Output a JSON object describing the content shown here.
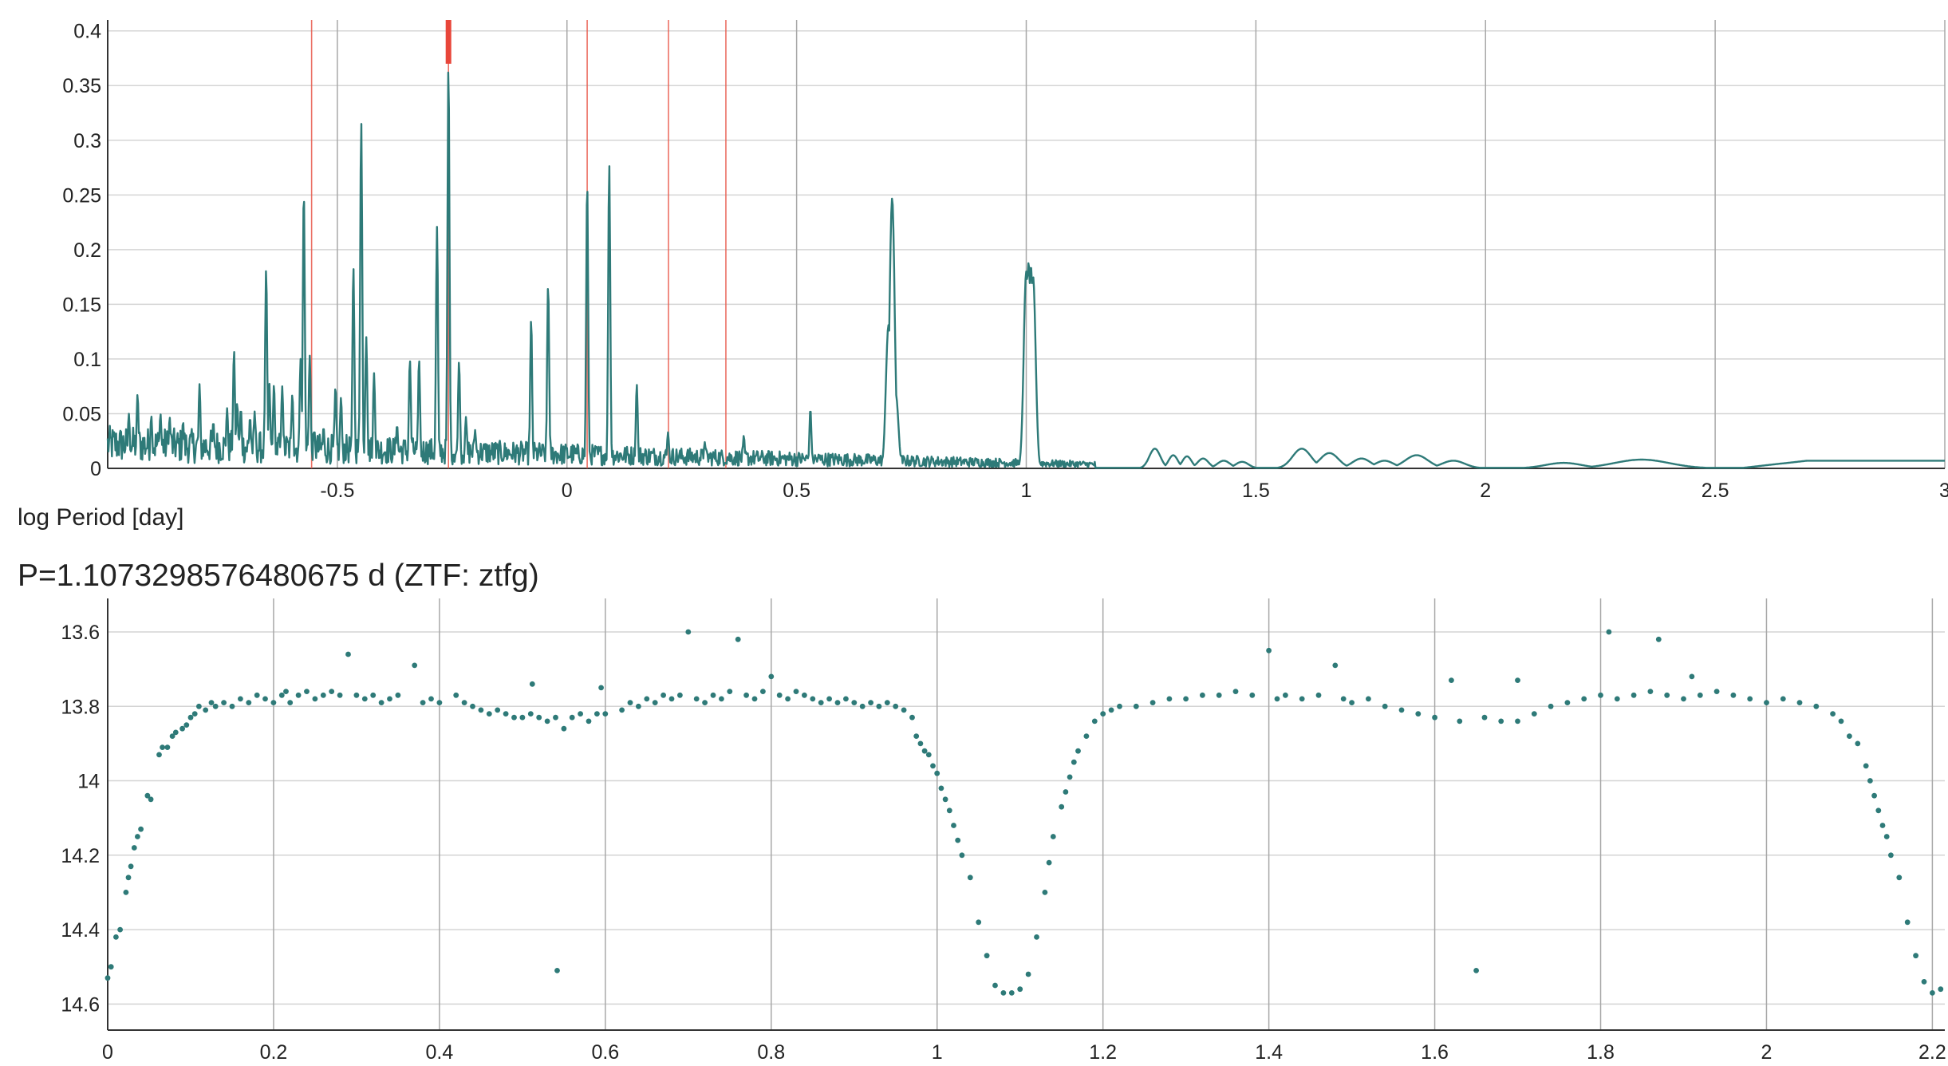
{
  "chart_data": [
    {
      "type": "line",
      "title": "",
      "xlabel": "log Period [day]",
      "ylabel": "",
      "xlim": [
        -1.0,
        3.0
      ],
      "ylim": [
        0,
        0.41
      ],
      "grid": true,
      "x_ticks": [
        {
          "v": -0.5,
          "label": "-0.5"
        },
        {
          "v": 0,
          "label": "0"
        },
        {
          "v": 0.5,
          "label": "0.5"
        },
        {
          "v": 1,
          "label": "1"
        },
        {
          "v": 1.5,
          "label": "1.5"
        },
        {
          "v": 2,
          "label": "2"
        },
        {
          "v": 2.5,
          "label": "2.5"
        },
        {
          "v": 3,
          "label": "3"
        }
      ],
      "y_ticks": [
        {
          "v": 0,
          "label": "0"
        },
        {
          "v": 0.05,
          "label": "0.05"
        },
        {
          "v": 0.1,
          "label": "0.1"
        },
        {
          "v": 0.15,
          "label": "0.15"
        },
        {
          "v": 0.2,
          "label": "0.2"
        },
        {
          "v": 0.25,
          "label": "0.25"
        },
        {
          "v": 0.3,
          "label": "0.3"
        },
        {
          "v": 0.35,
          "label": "0.35"
        },
        {
          "v": 0.4,
          "label": "0.4"
        }
      ],
      "series_color": "#2e7a78",
      "marker_color": "#e8584a",
      "selected_marker_color": "#e8463a",
      "marker_lines_x": [
        -0.556,
        -0.258,
        0.044,
        0.221,
        0.346
      ],
      "selected_period_x": -0.258,
      "peaks": [
        {
          "x": -0.954,
          "y": 0.05
        },
        {
          "x": -0.935,
          "y": 0.068
        },
        {
          "x": -0.905,
          "y": 0.048
        },
        {
          "x": -0.885,
          "y": 0.05
        },
        {
          "x": -0.865,
          "y": 0.047
        },
        {
          "x": -0.836,
          "y": 0.043
        },
        {
          "x": -0.8,
          "y": 0.077
        },
        {
          "x": -0.77,
          "y": 0.043
        },
        {
          "x": -0.74,
          "y": 0.055
        },
        {
          "x": -0.725,
          "y": 0.108
        },
        {
          "x": -0.718,
          "y": 0.06
        },
        {
          "x": -0.71,
          "y": 0.055
        },
        {
          "x": -0.69,
          "y": 0.047
        },
        {
          "x": -0.68,
          "y": 0.052
        },
        {
          "x": -0.655,
          "y": 0.183
        },
        {
          "x": -0.648,
          "y": 0.078
        },
        {
          "x": -0.638,
          "y": 0.077
        },
        {
          "x": -0.62,
          "y": 0.075
        },
        {
          "x": -0.598,
          "y": 0.068
        },
        {
          "x": -0.58,
          "y": 0.1
        },
        {
          "x": -0.573,
          "y": 0.256
        },
        {
          "x": -0.56,
          "y": 0.103
        },
        {
          "x": -0.55,
          "y": 0.035
        },
        {
          "x": -0.53,
          "y": 0.038
        },
        {
          "x": -0.504,
          "y": 0.075
        },
        {
          "x": -0.492,
          "y": 0.065
        },
        {
          "x": -0.465,
          "y": 0.185
        },
        {
          "x": -0.448,
          "y": 0.318
        },
        {
          "x": -0.437,
          "y": 0.12
        },
        {
          "x": -0.42,
          "y": 0.087
        },
        {
          "x": -0.37,
          "y": 0.04
        },
        {
          "x": -0.342,
          "y": 0.1
        },
        {
          "x": -0.322,
          "y": 0.1
        },
        {
          "x": -0.283,
          "y": 0.221
        },
        {
          "x": -0.258,
          "y": 0.37
        },
        {
          "x": -0.235,
          "y": 0.098
        },
        {
          "x": -0.22,
          "y": 0.047
        },
        {
          "x": -0.2,
          "y": 0.035
        },
        {
          "x": -0.078,
          "y": 0.137
        },
        {
          "x": -0.041,
          "y": 0.169
        },
        {
          "x": 0.044,
          "y": 0.263
        },
        {
          "x": 0.092,
          "y": 0.279
        },
        {
          "x": 0.152,
          "y": 0.077
        },
        {
          "x": 0.22,
          "y": 0.033
        },
        {
          "x": 0.3,
          "y": 0.024
        },
        {
          "x": 0.385,
          "y": 0.03
        },
        {
          "x": 0.53,
          "y": 0.055
        },
        {
          "x": 0.7,
          "y": 0.131
        },
        {
          "x": 0.708,
          "y": 0.247
        },
        {
          "x": 0.716,
          "y": 0.068
        },
        {
          "x": 1.0,
          "y": 0.18
        },
        {
          "x": 1.005,
          "y": 0.188
        },
        {
          "x": 1.01,
          "y": 0.185
        },
        {
          "x": 1.015,
          "y": 0.175
        }
      ],
      "humps": [
        {
          "x": 1.28,
          "y": 0.018,
          "w": 0.012
        },
        {
          "x": 1.32,
          "y": 0.012,
          "w": 0.01
        },
        {
          "x": 1.35,
          "y": 0.011,
          "w": 0.01
        },
        {
          "x": 1.385,
          "y": 0.009,
          "w": 0.012
        },
        {
          "x": 1.43,
          "y": 0.007,
          "w": 0.014
        },
        {
          "x": 1.47,
          "y": 0.006,
          "w": 0.014
        },
        {
          "x": 1.6,
          "y": 0.018,
          "w": 0.02
        },
        {
          "x": 1.66,
          "y": 0.014,
          "w": 0.02
        },
        {
          "x": 1.73,
          "y": 0.009,
          "w": 0.02
        },
        {
          "x": 1.78,
          "y": 0.007,
          "w": 0.02
        },
        {
          "x": 1.85,
          "y": 0.012,
          "w": 0.025
        },
        {
          "x": 1.93,
          "y": 0.007,
          "w": 0.025
        },
        {
          "x": 2.17,
          "y": 0.005,
          "w": 0.04
        },
        {
          "x": 2.34,
          "y": 0.008,
          "w": 0.06
        }
      ],
      "tail": {
        "from": 2.55,
        "level": 0.007
      }
    },
    {
      "type": "scatter",
      "title": "P=1.1073298576480675 d (ZTF: ztfg)",
      "xlabel": "",
      "ylabel": "",
      "xlim": [
        0,
        2.215
      ],
      "ylim": [
        14.67,
        13.51
      ],
      "y_inverted": true,
      "grid": true,
      "period": 1.1073298576480675,
      "x_ticks": [
        {
          "v": 0,
          "label": "0"
        },
        {
          "v": 0.2,
          "label": "0.2"
        },
        {
          "v": 0.4,
          "label": "0.4"
        },
        {
          "v": 0.6,
          "label": "0.6"
        },
        {
          "v": 0.8,
          "label": "0.8"
        },
        {
          "v": 1,
          "label": "1"
        },
        {
          "v": 1.2,
          "label": "1.2"
        },
        {
          "v": 1.4,
          "label": "1.4"
        },
        {
          "v": 1.6,
          "label": "1.6"
        },
        {
          "v": 1.8,
          "label": "1.8"
        },
        {
          "v": 2,
          "label": "2"
        },
        {
          "v": 2.2,
          "label": "2.2"
        }
      ],
      "y_ticks": [
        {
          "v": 13.6,
          "label": "13.6"
        },
        {
          "v": 13.8,
          "label": "13.8"
        },
        {
          "v": 14,
          "label": "14"
        },
        {
          "v": 14.2,
          "label": "14.2"
        },
        {
          "v": 14.4,
          "label": "14.4"
        },
        {
          "v": 14.6,
          "label": "14.6"
        }
      ],
      "point_color": "#2e7a78",
      "points": [
        [
          0.0,
          14.53
        ],
        [
          0.004,
          14.5
        ],
        [
          0.01,
          14.42
        ],
        [
          0.015,
          14.4
        ],
        [
          0.022,
          14.3
        ],
        [
          0.025,
          14.26
        ],
        [
          0.028,
          14.23
        ],
        [
          0.032,
          14.18
        ],
        [
          0.036,
          14.15
        ],
        [
          0.04,
          14.13
        ],
        [
          0.048,
          14.04
        ],
        [
          0.052,
          14.05
        ],
        [
          0.062,
          13.93
        ],
        [
          0.066,
          13.91
        ],
        [
          0.072,
          13.91
        ],
        [
          0.078,
          13.88
        ],
        [
          0.082,
          13.87
        ],
        [
          0.09,
          13.86
        ],
        [
          0.095,
          13.85
        ],
        [
          0.1,
          13.83
        ],
        [
          0.105,
          13.82
        ],
        [
          0.11,
          13.8
        ],
        [
          0.118,
          13.81
        ],
        [
          0.125,
          13.79
        ],
        [
          0.13,
          13.8
        ],
        [
          0.14,
          13.79
        ],
        [
          0.15,
          13.8
        ],
        [
          0.16,
          13.78
        ],
        [
          0.17,
          13.79
        ],
        [
          0.18,
          13.77
        ],
        [
          0.19,
          13.78
        ],
        [
          0.2,
          13.79
        ],
        [
          0.21,
          13.77
        ],
        [
          0.215,
          13.76
        ],
        [
          0.22,
          13.79
        ],
        [
          0.23,
          13.77
        ],
        [
          0.24,
          13.76
        ],
        [
          0.25,
          13.78
        ],
        [
          0.26,
          13.77
        ],
        [
          0.27,
          13.76
        ],
        [
          0.28,
          13.77
        ],
        [
          0.29,
          13.66
        ],
        [
          0.3,
          13.77
        ],
        [
          0.31,
          13.78
        ],
        [
          0.32,
          13.77
        ],
        [
          0.33,
          13.79
        ],
        [
          0.34,
          13.78
        ],
        [
          0.35,
          13.77
        ],
        [
          0.37,
          13.69
        ],
        [
          0.38,
          13.79
        ],
        [
          0.39,
          13.78
        ],
        [
          0.4,
          13.79
        ],
        [
          0.42,
          13.77
        ],
        [
          0.43,
          13.79
        ],
        [
          0.44,
          13.8
        ],
        [
          0.45,
          13.81
        ],
        [
          0.46,
          13.82
        ],
        [
          0.47,
          13.81
        ],
        [
          0.48,
          13.82
        ],
        [
          0.49,
          13.83
        ],
        [
          0.5,
          13.83
        ],
        [
          0.51,
          13.82
        ],
        [
          0.512,
          13.74
        ],
        [
          0.52,
          13.83
        ],
        [
          0.53,
          13.84
        ],
        [
          0.54,
          13.83
        ],
        [
          0.542,
          14.51
        ],
        [
          0.55,
          13.86
        ],
        [
          0.56,
          13.83
        ],
        [
          0.57,
          13.82
        ],
        [
          0.58,
          13.84
        ],
        [
          0.59,
          13.82
        ],
        [
          0.595,
          13.75
        ],
        [
          0.6,
          13.82
        ],
        [
          0.62,
          13.81
        ],
        [
          0.63,
          13.79
        ],
        [
          0.64,
          13.8
        ],
        [
          0.65,
          13.78
        ],
        [
          0.66,
          13.79
        ],
        [
          0.67,
          13.77
        ],
        [
          0.68,
          13.78
        ],
        [
          0.69,
          13.77
        ],
        [
          0.7,
          13.6
        ],
        [
          0.71,
          13.78
        ],
        [
          0.72,
          13.79
        ],
        [
          0.73,
          13.77
        ],
        [
          0.74,
          13.78
        ],
        [
          0.75,
          13.76
        ],
        [
          0.76,
          13.62
        ],
        [
          0.77,
          13.77
        ],
        [
          0.78,
          13.78
        ],
        [
          0.79,
          13.76
        ],
        [
          0.8,
          13.72
        ],
        [
          0.81,
          13.77
        ],
        [
          0.82,
          13.78
        ],
        [
          0.83,
          13.76
        ],
        [
          0.84,
          13.77
        ],
        [
          0.85,
          13.78
        ],
        [
          0.86,
          13.79
        ],
        [
          0.87,
          13.78
        ],
        [
          0.88,
          13.79
        ],
        [
          0.89,
          13.78
        ],
        [
          0.9,
          13.79
        ],
        [
          0.91,
          13.8
        ],
        [
          0.92,
          13.79
        ],
        [
          0.93,
          13.8
        ],
        [
          0.94,
          13.79
        ],
        [
          0.95,
          13.8
        ],
        [
          0.96,
          13.81
        ],
        [
          0.97,
          13.83
        ],
        [
          0.975,
          13.88
        ],
        [
          0.98,
          13.9
        ],
        [
          0.985,
          13.92
        ],
        [
          0.99,
          13.93
        ],
        [
          0.995,
          13.96
        ],
        [
          1.0,
          13.98
        ],
        [
          1.005,
          14.02
        ],
        [
          1.01,
          14.05
        ],
        [
          1.015,
          14.08
        ],
        [
          1.02,
          14.12
        ],
        [
          1.025,
          14.16
        ],
        [
          1.03,
          14.2
        ],
        [
          1.04,
          14.26
        ],
        [
          1.05,
          14.38
        ],
        [
          1.06,
          14.47
        ],
        [
          1.07,
          14.55
        ],
        [
          1.08,
          14.57
        ],
        [
          1.09,
          14.57
        ],
        [
          1.1,
          14.56
        ],
        [
          1.11,
          14.52
        ],
        [
          1.12,
          14.42
        ],
        [
          1.13,
          14.3
        ],
        [
          1.135,
          14.22
        ],
        [
          1.14,
          14.15
        ],
        [
          1.15,
          14.07
        ],
        [
          1.155,
          14.03
        ],
        [
          1.16,
          13.99
        ],
        [
          1.165,
          13.95
        ],
        [
          1.17,
          13.92
        ],
        [
          1.18,
          13.88
        ],
        [
          1.19,
          13.84
        ],
        [
          1.2,
          13.82
        ],
        [
          1.21,
          13.81
        ],
        [
          1.22,
          13.8
        ],
        [
          1.24,
          13.8
        ],
        [
          1.26,
          13.79
        ],
        [
          1.28,
          13.78
        ],
        [
          1.3,
          13.78
        ],
        [
          1.32,
          13.77
        ],
        [
          1.34,
          13.77
        ],
        [
          1.36,
          13.76
        ],
        [
          1.38,
          13.77
        ],
        [
          1.4,
          13.65
        ],
        [
          1.41,
          13.78
        ],
        [
          1.42,
          13.77
        ],
        [
          1.44,
          13.78
        ],
        [
          1.46,
          13.77
        ],
        [
          1.48,
          13.69
        ],
        [
          1.49,
          13.78
        ],
        [
          1.5,
          13.79
        ],
        [
          1.52,
          13.78
        ],
        [
          1.54,
          13.8
        ],
        [
          1.56,
          13.81
        ],
        [
          1.58,
          13.82
        ],
        [
          1.6,
          13.83
        ],
        [
          1.62,
          13.73
        ],
        [
          1.63,
          13.84
        ],
        [
          1.65,
          14.51
        ],
        [
          1.66,
          13.83
        ],
        [
          1.68,
          13.84
        ],
        [
          1.7,
          13.84
        ],
        [
          1.7,
          13.73
        ],
        [
          1.72,
          13.82
        ],
        [
          1.74,
          13.8
        ],
        [
          1.76,
          13.79
        ],
        [
          1.78,
          13.78
        ],
        [
          1.8,
          13.77
        ],
        [
          1.81,
          13.6
        ],
        [
          1.82,
          13.78
        ],
        [
          1.84,
          13.77
        ],
        [
          1.86,
          13.76
        ],
        [
          1.87,
          13.62
        ],
        [
          1.88,
          13.77
        ],
        [
          1.9,
          13.78
        ],
        [
          1.91,
          13.72
        ],
        [
          1.92,
          13.77
        ],
        [
          1.94,
          13.76
        ],
        [
          1.96,
          13.77
        ],
        [
          1.98,
          13.78
        ],
        [
          2.0,
          13.79
        ],
        [
          2.02,
          13.78
        ],
        [
          2.04,
          13.79
        ],
        [
          2.06,
          13.8
        ],
        [
          2.08,
          13.82
        ],
        [
          2.09,
          13.84
        ],
        [
          2.1,
          13.88
        ],
        [
          2.11,
          13.9
        ],
        [
          2.12,
          13.96
        ],
        [
          2.125,
          14.0
        ],
        [
          2.13,
          14.04
        ],
        [
          2.135,
          14.08
        ],
        [
          2.14,
          14.12
        ],
        [
          2.145,
          14.15
        ],
        [
          2.15,
          14.2
        ],
        [
          2.16,
          14.26
        ],
        [
          2.17,
          14.38
        ],
        [
          2.18,
          14.47
        ],
        [
          2.19,
          14.54
        ],
        [
          2.2,
          14.57
        ],
        [
          2.21,
          14.56
        ]
      ]
    }
  ]
}
